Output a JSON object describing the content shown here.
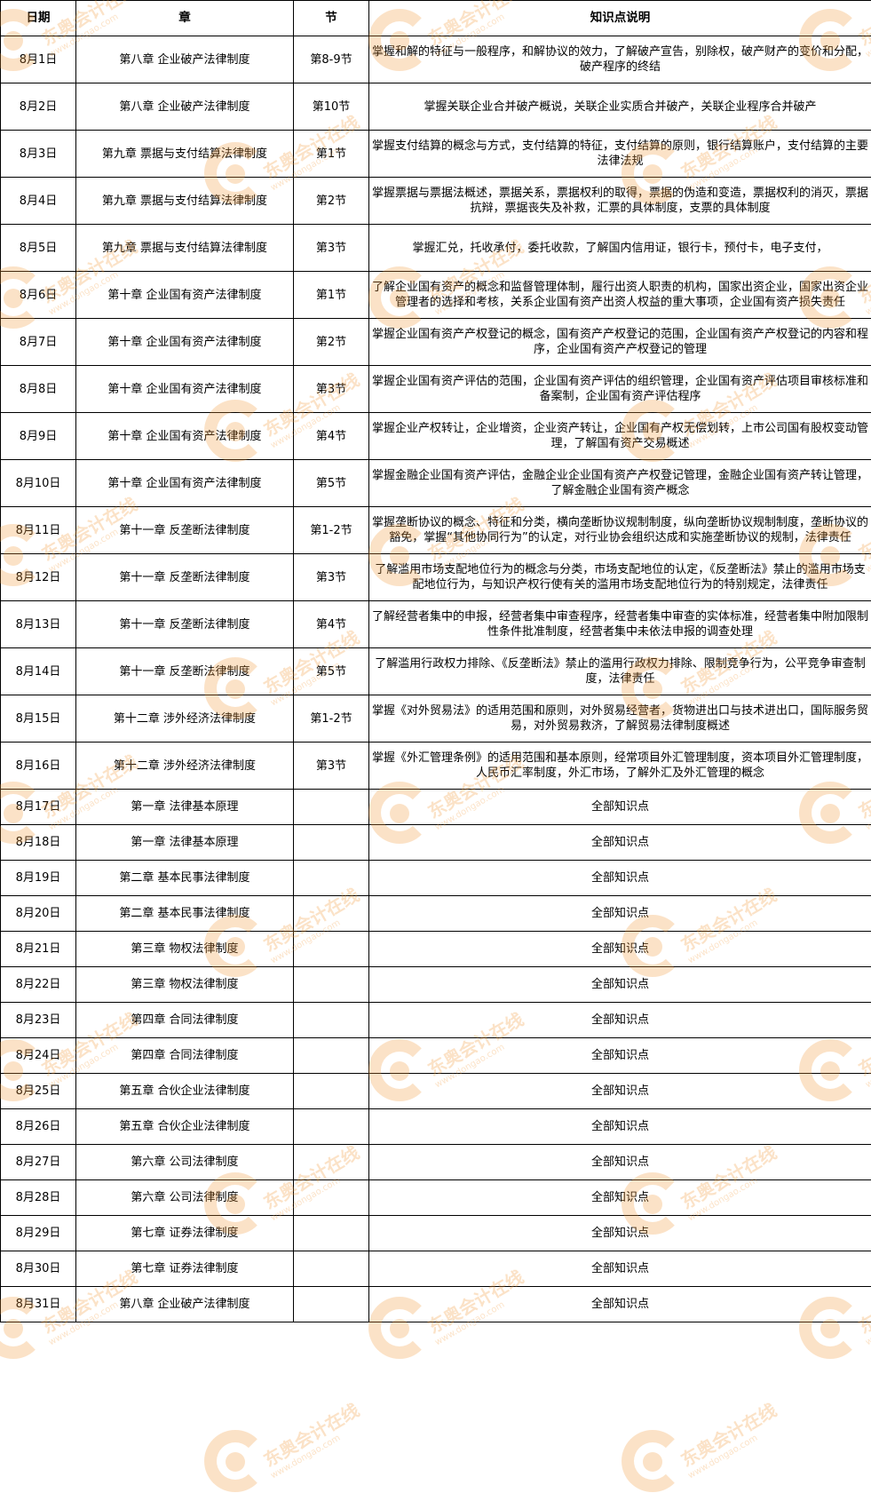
{
  "header": {
    "date": "日期",
    "chapter": "章",
    "section": "节",
    "description": "知识点说明"
  },
  "watermark": {
    "brand": "东奥会计在线",
    "url": "www.dongao.com",
    "color": "#f39a3a"
  },
  "rows": [
    {
      "date": "8月1日",
      "chapter": "第八章  企业破产法律制度",
      "section": "第8-9节",
      "description": "掌握和解的特征与一般程序，和解协议的效力，了解破产宣告，别除权，破产财产的变价和分配，破产程序的终结"
    },
    {
      "date": "8月2日",
      "chapter": "第八章  企业破产法律制度",
      "section": "第10节",
      "description": "掌握关联企业合并破产概说，关联企业实质合并破产，关联企业程序合并破产"
    },
    {
      "date": "8月3日",
      "chapter": "第九章  票据与支付结算法律制度",
      "section": "第1节",
      "description": "掌握支付结算的概念与方式，支付结算的特征，支付结算的原则，银行结算账户，支付结算的主要法律法规"
    },
    {
      "date": "8月4日",
      "chapter": "第九章  票据与支付结算法律制度",
      "section": "第2节",
      "description": "掌握票据与票据法概述，票据关系，票据权利的取得，票据的伪造和变造，票据权利的消灭，票据抗辩，票据丧失及补救，汇票的具体制度，支票的具体制度"
    },
    {
      "date": "8月5日",
      "chapter": "第九章  票据与支付结算法律制度",
      "section": "第3节",
      "description": "掌握汇兑，托收承付，委托收款，了解国内信用证，银行卡，预付卡，电子支付，"
    },
    {
      "date": "8月6日",
      "chapter": "第十章  企业国有资产法律制度",
      "section": "第1节",
      "description": "了解企业国有资产的概念和监督管理体制，履行出资人职责的机构，国家出资企业，国家出资企业管理者的选择和考核，关系企业国有资产出资人权益的重大事项，企业国有资产损失责任"
    },
    {
      "date": "8月7日",
      "chapter": "第十章  企业国有资产法律制度",
      "section": "第2节",
      "description": "掌握企业国有资产产权登记的概念，国有资产产权登记的范围，企业国有资产产权登记的内容和程序，企业国有资产产权登记的管理"
    },
    {
      "date": "8月8日",
      "chapter": "第十章  企业国有资产法律制度",
      "section": "第3节",
      "description": "掌握企业国有资产评估的范围，企业国有资产评估的组织管理，企业国有资产评估项目审核标准和备案制，企业国有资产评估程序"
    },
    {
      "date": "8月9日",
      "chapter": "第十章  企业国有资产法律制度",
      "section": "第4节",
      "description": "掌握企业产权转让，企业增资，企业资产转让，企业国有产权无偿划转，上市公司国有股权变动管理，了解国有资产交易概述"
    },
    {
      "date": "8月10日",
      "chapter": "第十章  企业国有资产法律制度",
      "section": "第5节",
      "description": "掌握金融企业国有资产评估，金融企业企业国有资产产权登记管理，金融企业国有资产转让管理，了解金融企业国有资产概念"
    },
    {
      "date": "8月11日",
      "chapter": "第十一章  反垄断法律制度",
      "section": "第1-2节",
      "description": "掌握垄断协议的概念、特征和分类，横向垄断协议规制制度，纵向垄断协议规制制度，垄断协议的豁免，掌握“其他协同行为”的认定，对行业协会组织达成和实施垄断协议的规制，法律责任"
    },
    {
      "date": "8月12日",
      "chapter": "第十一章  反垄断法律制度",
      "section": "第3节",
      "description": "了解滥用市场支配地位行为的概念与分类，市场支配地位的认定，《反垄断法》禁止的滥用市场支配地位行为，与知识产权行使有关的滥用市场支配地位行为的特别规定，法律责任"
    },
    {
      "date": "8月13日",
      "chapter": "第十一章  反垄断法律制度",
      "section": "第4节",
      "description": "了解经营者集中的申报，经营者集中审查程序，经营者集中审查的实体标准，经营者集中附加限制性条件批准制度，经营者集中未依法申报的调查处理"
    },
    {
      "date": "8月14日",
      "chapter": "第十一章  反垄断法律制度",
      "section": "第5节",
      "description": "了解滥用行政权力排除、《反垄断法》禁止的滥用行政权力排除、限制竞争行为，公平竞争审查制度，法律责任"
    },
    {
      "date": "8月15日",
      "chapter": "第十二章  涉外经济法律制度",
      "section": "第1-2节",
      "description": "掌握《对外贸易法》的适用范围和原则，对外贸易经营者，货物进出口与技术进出口，国际服务贸易，对外贸易救济，了解贸易法律制度概述"
    },
    {
      "date": "8月16日",
      "chapter": "第十二章  涉外经济法律制度",
      "section": "第3节",
      "description": "掌握《外汇管理条例》的适用范围和基本原则，经常项目外汇管理制度，资本项目外汇管理制度，人民币汇率制度，外汇市场，了解外汇及外汇管理的概念"
    },
    {
      "date": "8月17日",
      "chapter": "第一章  法律基本原理",
      "section": "",
      "description": "全部知识点"
    },
    {
      "date": "8月18日",
      "chapter": "第一章  法律基本原理",
      "section": "",
      "description": "全部知识点"
    },
    {
      "date": "8月19日",
      "chapter": "第二章  基本民事法律制度",
      "section": "",
      "description": "全部知识点"
    },
    {
      "date": "8月20日",
      "chapter": "第二章  基本民事法律制度",
      "section": "",
      "description": "全部知识点"
    },
    {
      "date": "8月21日",
      "chapter": "第三章  物权法律制度",
      "section": "",
      "description": "全部知识点"
    },
    {
      "date": "8月22日",
      "chapter": "第三章  物权法律制度",
      "section": "",
      "description": "全部知识点"
    },
    {
      "date": "8月23日",
      "chapter": "第四章  合同法律制度",
      "section": "",
      "description": "全部知识点"
    },
    {
      "date": "8月24日",
      "chapter": "第四章  合同法律制度",
      "section": "",
      "description": "全部知识点"
    },
    {
      "date": "8月25日",
      "chapter": "第五章  合伙企业法律制度",
      "section": "",
      "description": "全部知识点"
    },
    {
      "date": "8月26日",
      "chapter": "第五章  合伙企业法律制度",
      "section": "",
      "description": "全部知识点"
    },
    {
      "date": "8月27日",
      "chapter": "第六章  公司法律制度",
      "section": "",
      "description": "全部知识点"
    },
    {
      "date": "8月28日",
      "chapter": "第六章  公司法律制度",
      "section": "",
      "description": "全部知识点"
    },
    {
      "date": "8月29日",
      "chapter": "第七章  证券法律制度",
      "section": "",
      "description": "全部知识点"
    },
    {
      "date": "8月30日",
      "chapter": "第七章  证券法律制度",
      "section": "",
      "description": "全部知识点"
    },
    {
      "date": "8月31日",
      "chapter": "第八章  企业破产法律制度",
      "section": "",
      "description": "全部知识点"
    }
  ]
}
